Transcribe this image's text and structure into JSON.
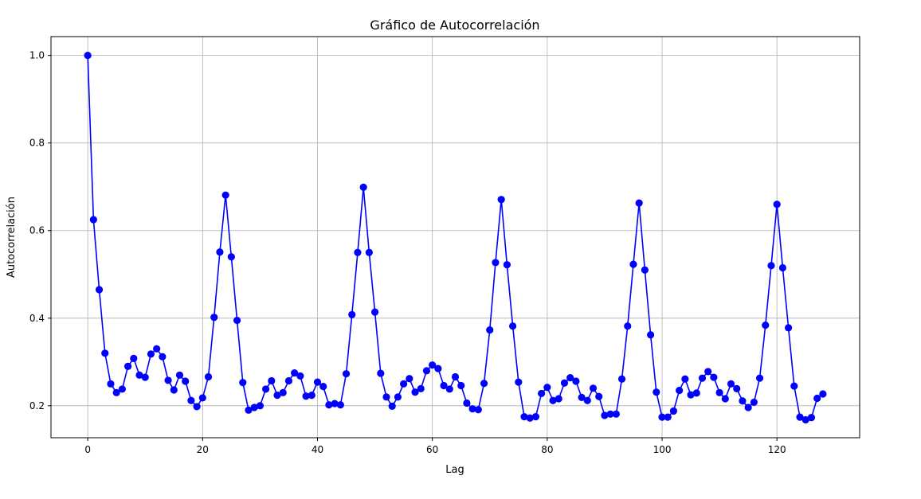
{
  "chart_data": {
    "type": "line",
    "title": "Gráfico de Autocorrelación",
    "xlabel": "Lag",
    "ylabel": "Autocorrelación",
    "xlim": [
      -6.4,
      134.4
    ],
    "ylim": [
      0.127,
      1.043
    ],
    "xticks": [
      0,
      20,
      40,
      60,
      80,
      100,
      120
    ],
    "xtick_labels": [
      "0",
      "20",
      "40",
      "60",
      "80",
      "100",
      "120"
    ],
    "yticks": [
      0.2,
      0.4,
      0.6,
      0.8,
      1.0
    ],
    "ytick_labels": [
      "0.2",
      "0.4",
      "0.6",
      "0.8",
      "1.0"
    ],
    "grid": true,
    "color": "#0000ff",
    "marker": "circle",
    "series": [
      {
        "x": [
          0,
          1,
          2,
          3,
          4,
          5,
          6,
          7,
          8,
          9,
          10,
          11,
          12,
          13,
          14,
          15,
          16,
          17,
          18,
          19,
          20,
          21,
          22,
          23,
          24,
          25,
          26,
          27,
          28,
          29,
          30,
          31,
          32,
          33,
          34,
          35,
          36,
          37,
          38,
          39,
          40,
          41,
          42,
          43,
          44,
          45,
          46,
          47,
          48,
          49,
          50,
          51,
          52,
          53,
          54,
          55,
          56,
          57,
          58,
          59,
          60,
          61,
          62,
          63,
          64,
          65,
          66,
          67,
          68,
          69,
          70,
          71,
          72,
          73,
          74,
          75,
          76,
          77,
          78,
          79,
          80,
          81,
          82,
          83,
          84,
          85,
          86,
          87,
          88,
          89,
          90,
          91,
          92,
          93,
          94,
          95,
          96,
          97,
          98,
          99,
          100,
          101,
          102,
          103,
          104,
          105,
          106,
          107,
          108,
          109,
          110,
          111,
          112,
          113,
          114,
          115,
          116,
          117,
          118,
          119,
          120,
          121,
          122,
          123,
          124,
          125,
          126,
          127,
          128
        ],
        "y": [
          1.0,
          0.625,
          0.465,
          0.32,
          0.25,
          0.23,
          0.238,
          0.29,
          0.308,
          0.27,
          0.265,
          0.318,
          0.33,
          0.312,
          0.258,
          0.236,
          0.27,
          0.256,
          0.212,
          0.198,
          0.218,
          0.266,
          0.402,
          0.551,
          0.681,
          0.54,
          0.395,
          0.253,
          0.19,
          0.196,
          0.2,
          0.238,
          0.257,
          0.224,
          0.23,
          0.257,
          0.275,
          0.268,
          0.222,
          0.224,
          0.254,
          0.244,
          0.202,
          0.205,
          0.202,
          0.273,
          0.408,
          0.55,
          0.699,
          0.55,
          0.414,
          0.274,
          0.22,
          0.199,
          0.22,
          0.25,
          0.262,
          0.231,
          0.239,
          0.28,
          0.293,
          0.285,
          0.246,
          0.238,
          0.266,
          0.246,
          0.206,
          0.193,
          0.191,
          0.251,
          0.373,
          0.527,
          0.671,
          0.522,
          0.382,
          0.254,
          0.175,
          0.172,
          0.175,
          0.228,
          0.242,
          0.212,
          0.216,
          0.252,
          0.264,
          0.256,
          0.219,
          0.212,
          0.24,
          0.221,
          0.178,
          0.181,
          0.181,
          0.261,
          0.382,
          0.523,
          0.663,
          0.51,
          0.362,
          0.231,
          0.174,
          0.174,
          0.188,
          0.235,
          0.261,
          0.225,
          0.229,
          0.263,
          0.278,
          0.265,
          0.23,
          0.216,
          0.25,
          0.239,
          0.211,
          0.196,
          0.208,
          0.263,
          0.384,
          0.52,
          0.66,
          0.515,
          0.378,
          0.245,
          0.174,
          0.168,
          0.173,
          0.217,
          0.227
        ]
      }
    ]
  }
}
